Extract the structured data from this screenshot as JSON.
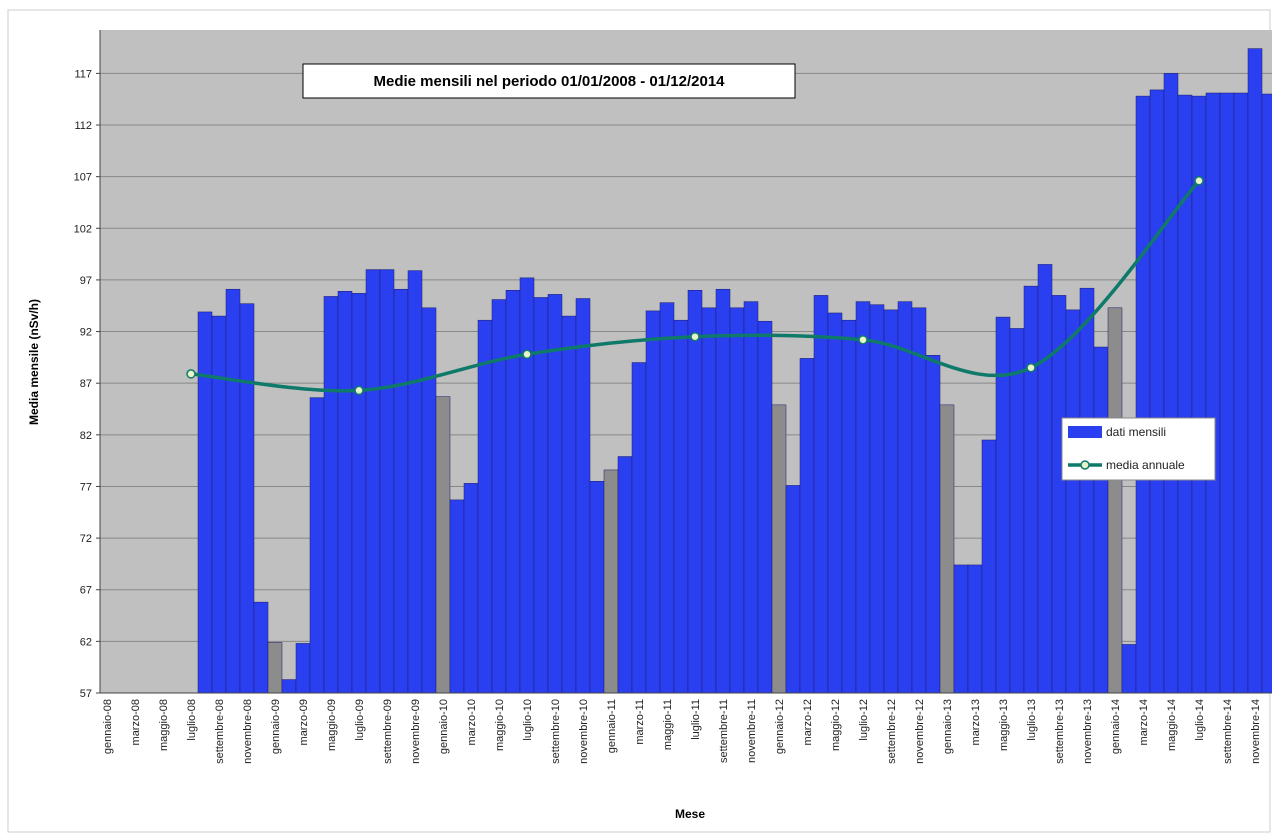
{
  "chart_data": {
    "type": "bar",
    "title": "Medie mensili  nel periodo 01/01/2008 - 01/12/2014",
    "x_label": "Mese",
    "y_label": "Media mensile (nSv/h)",
    "ylim": [
      57,
      121.2
    ],
    "yticks": [
      57,
      62,
      67,
      72,
      77,
      82,
      87,
      92,
      97,
      102,
      107,
      112,
      117
    ],
    "grid": true,
    "background": "#c0c0c0",
    "legend_position": "right",
    "categories": [
      "gennaio-08",
      null,
      "marzo-08",
      null,
      "maggio-08",
      null,
      "luglio-08",
      null,
      "settembre-08",
      null,
      "novembre-08",
      null,
      "gennaio-09",
      null,
      "marzo-09",
      null,
      "maggio-09",
      null,
      "luglio-09",
      null,
      "settembre-09",
      null,
      "novembre-09",
      null,
      "gennaio-10",
      null,
      "marzo-10",
      null,
      "maggio-10",
      null,
      "luglio-10",
      null,
      "settembre-10",
      null,
      "novembre-10",
      null,
      "gennaio-11",
      null,
      "marzo-11",
      null,
      "maggio-11",
      null,
      "luglio-11",
      null,
      "settembre-11",
      null,
      "novembre-11",
      null,
      "gennaio-12",
      null,
      "marzo-12",
      null,
      "maggio-12",
      null,
      "luglio-12",
      null,
      "settembre-12",
      null,
      "novembre-12",
      null,
      "gennaio-13",
      null,
      "marzo-13",
      null,
      "maggio-13",
      null,
      "luglio-13",
      null,
      "settembre-13",
      null,
      "novembre-13",
      null,
      "gennaio-14",
      null,
      "marzo-14",
      null,
      "maggio-14",
      null,
      "luglio-14",
      null,
      "settembre-14",
      null,
      "novembre-14",
      null
    ],
    "series": [
      {
        "name": "dati mensili",
        "type": "bar",
        "color": "#2a3ff0",
        "values": [
          null,
          null,
          null,
          null,
          null,
          null,
          null,
          93.9,
          93.5,
          96.1,
          94.7,
          65.8,
          61.9,
          58.3,
          61.8,
          85.6,
          95.4,
          95.9,
          95.7,
          98.0,
          98.0,
          96.1,
          97.9,
          94.3,
          85.7,
          75.7,
          77.3,
          93.1,
          95.1,
          96.0,
          97.2,
          95.3,
          95.6,
          93.5,
          95.2,
          77.5,
          78.6,
          79.9,
          89.0,
          94.0,
          94.8,
          93.1,
          96.0,
          94.3,
          96.1,
          94.3,
          94.9,
          93.0,
          84.9,
          77.1,
          89.4,
          95.5,
          93.8,
          93.1,
          94.9,
          94.6,
          94.1,
          94.9,
          94.3,
          89.7,
          84.9,
          69.4,
          69.4,
          81.5,
          93.4,
          92.3,
          96.4,
          98.5,
          95.5,
          94.1,
          96.2,
          90.5,
          94.3,
          61.7,
          114.8,
          115.4,
          117.0,
          114.9,
          114.8,
          115.1,
          115.1,
          115.1,
          119.4,
          115.0
        ],
        "highlight_color": "#8c8c8c",
        "highlight_every": 12
      },
      {
        "name": "media annuale",
        "type": "line",
        "color": "#0f7a6a",
        "x": [
          "luglio-08",
          "luglio-09",
          "luglio-10",
          "luglio-11",
          "luglio-12",
          "luglio-13",
          "luglio-14"
        ],
        "values": [
          87.9,
          86.3,
          89.8,
          91.5,
          91.2,
          88.5,
          106.6
        ]
      }
    ]
  }
}
